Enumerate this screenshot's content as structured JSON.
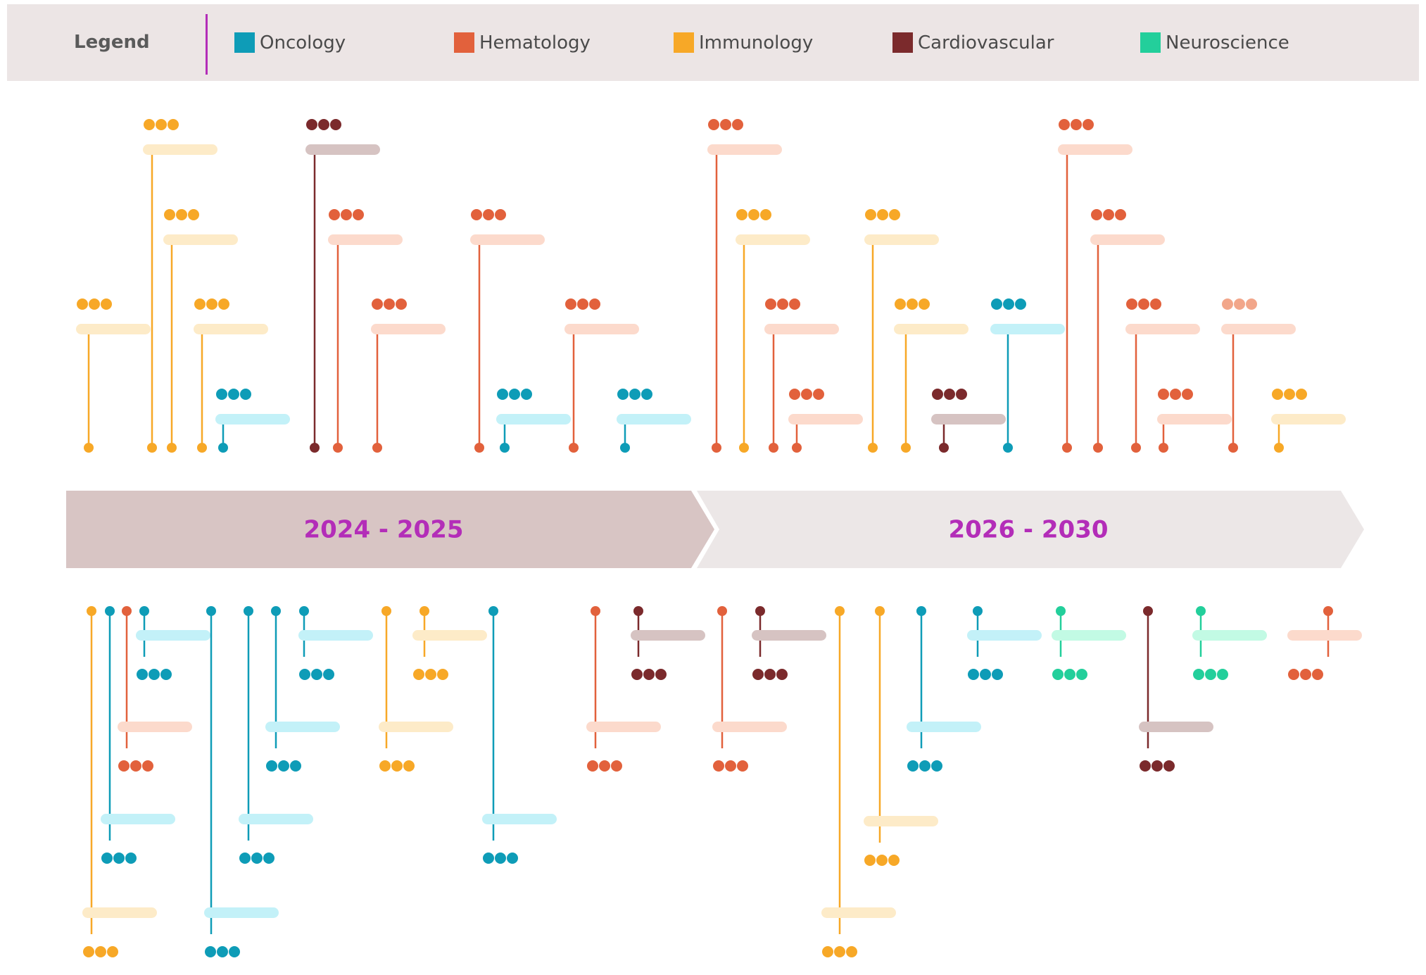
{
  "legend": {
    "title": "Legend",
    "items": [
      {
        "label": "Oncology",
        "color": "#0e9cb7"
      },
      {
        "label": "Hematology",
        "color": "#e2613c"
      },
      {
        "label": "Immunology",
        "color": "#f7a827"
      },
      {
        "label": "Cardiovascular",
        "color": "#7b2a2c"
      },
      {
        "label": "Neuroscience",
        "color": "#23cf9b"
      }
    ]
  },
  "periods": [
    {
      "label": "2024 - 2025"
    },
    {
      "label": "2026 - 2030"
    }
  ],
  "colors": {
    "period_active": "#d8c5c4",
    "period_inactive": "#ece7e7",
    "period_text": "#b32db8"
  }
}
